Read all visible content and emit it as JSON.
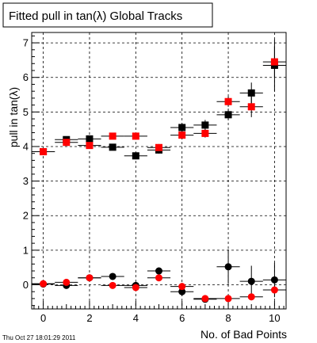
{
  "chart_data": {
    "type": "scatter",
    "title": "Fitted pull in tan(λ)  Global Tracks",
    "xlabel": "No. of Bad Points",
    "ylabel": "pull in tan(λ)",
    "xlim": [
      -0.5,
      10.5
    ],
    "ylim": [
      -0.7,
      7.3
    ],
    "x_ticks": [
      "0",
      "2",
      "4",
      "6",
      "8",
      "10"
    ],
    "y_ticks": [
      "0",
      "1",
      "2",
      "3",
      "4",
      "5",
      "6",
      "7"
    ],
    "grid": true,
    "timestamp": "Thu Oct 27 18:01:29 2011",
    "series": [
      {
        "marker": "square",
        "color": "#000000",
        "x": [
          0,
          1,
          2,
          3,
          4,
          5,
          6,
          7,
          8,
          9,
          10
        ],
        "y": [
          3.85,
          4.2,
          4.22,
          3.98,
          3.73,
          3.9,
          4.55,
          4.62,
          4.92,
          5.55,
          6.35
        ],
        "yerr": [
          0.05,
          0.07,
          0.1,
          0.08,
          0.1,
          0.1,
          0.12,
          0.15,
          0.15,
          0.3,
          0.75
        ]
      },
      {
        "marker": "square",
        "color": "#ff0000",
        "x": [
          0,
          1,
          2,
          3,
          4,
          5,
          6,
          7,
          8,
          9,
          10
        ],
        "y": [
          3.85,
          4.12,
          4.03,
          4.3,
          4.3,
          3.97,
          4.33,
          4.38,
          5.3,
          5.15,
          6.45
        ],
        "yerr": [
          0.05,
          0.05,
          0.07,
          0.07,
          0.1,
          0.1,
          0.12,
          0.12,
          0.15,
          0.3,
          0.45
        ]
      },
      {
        "marker": "circle",
        "color": "#000000",
        "x": [
          0,
          1,
          2,
          3,
          4,
          5,
          6,
          7,
          8,
          9,
          10
        ],
        "y": [
          0.02,
          -0.02,
          0.2,
          0.24,
          -0.02,
          0.4,
          -0.2,
          -0.42,
          0.52,
          0.1,
          0.14
        ],
        "yerr": [
          0.05,
          0.06,
          0.07,
          0.08,
          0.1,
          0.1,
          0.12,
          0.1,
          0.5,
          0.45,
          0.5
        ]
      },
      {
        "marker": "circle",
        "color": "#ff0000",
        "x": [
          0,
          1,
          2,
          3,
          4,
          5,
          6,
          7,
          8,
          9,
          10
        ],
        "y": [
          0.03,
          0.07,
          0.2,
          -0.02,
          -0.08,
          0.2,
          -0.05,
          -0.4,
          -0.4,
          -0.35,
          -0.15
        ],
        "yerr": [
          0.05,
          0.05,
          0.06,
          0.07,
          0.08,
          0.08,
          0.1,
          0.08,
          0.1,
          0.1,
          0.1
        ]
      }
    ]
  }
}
